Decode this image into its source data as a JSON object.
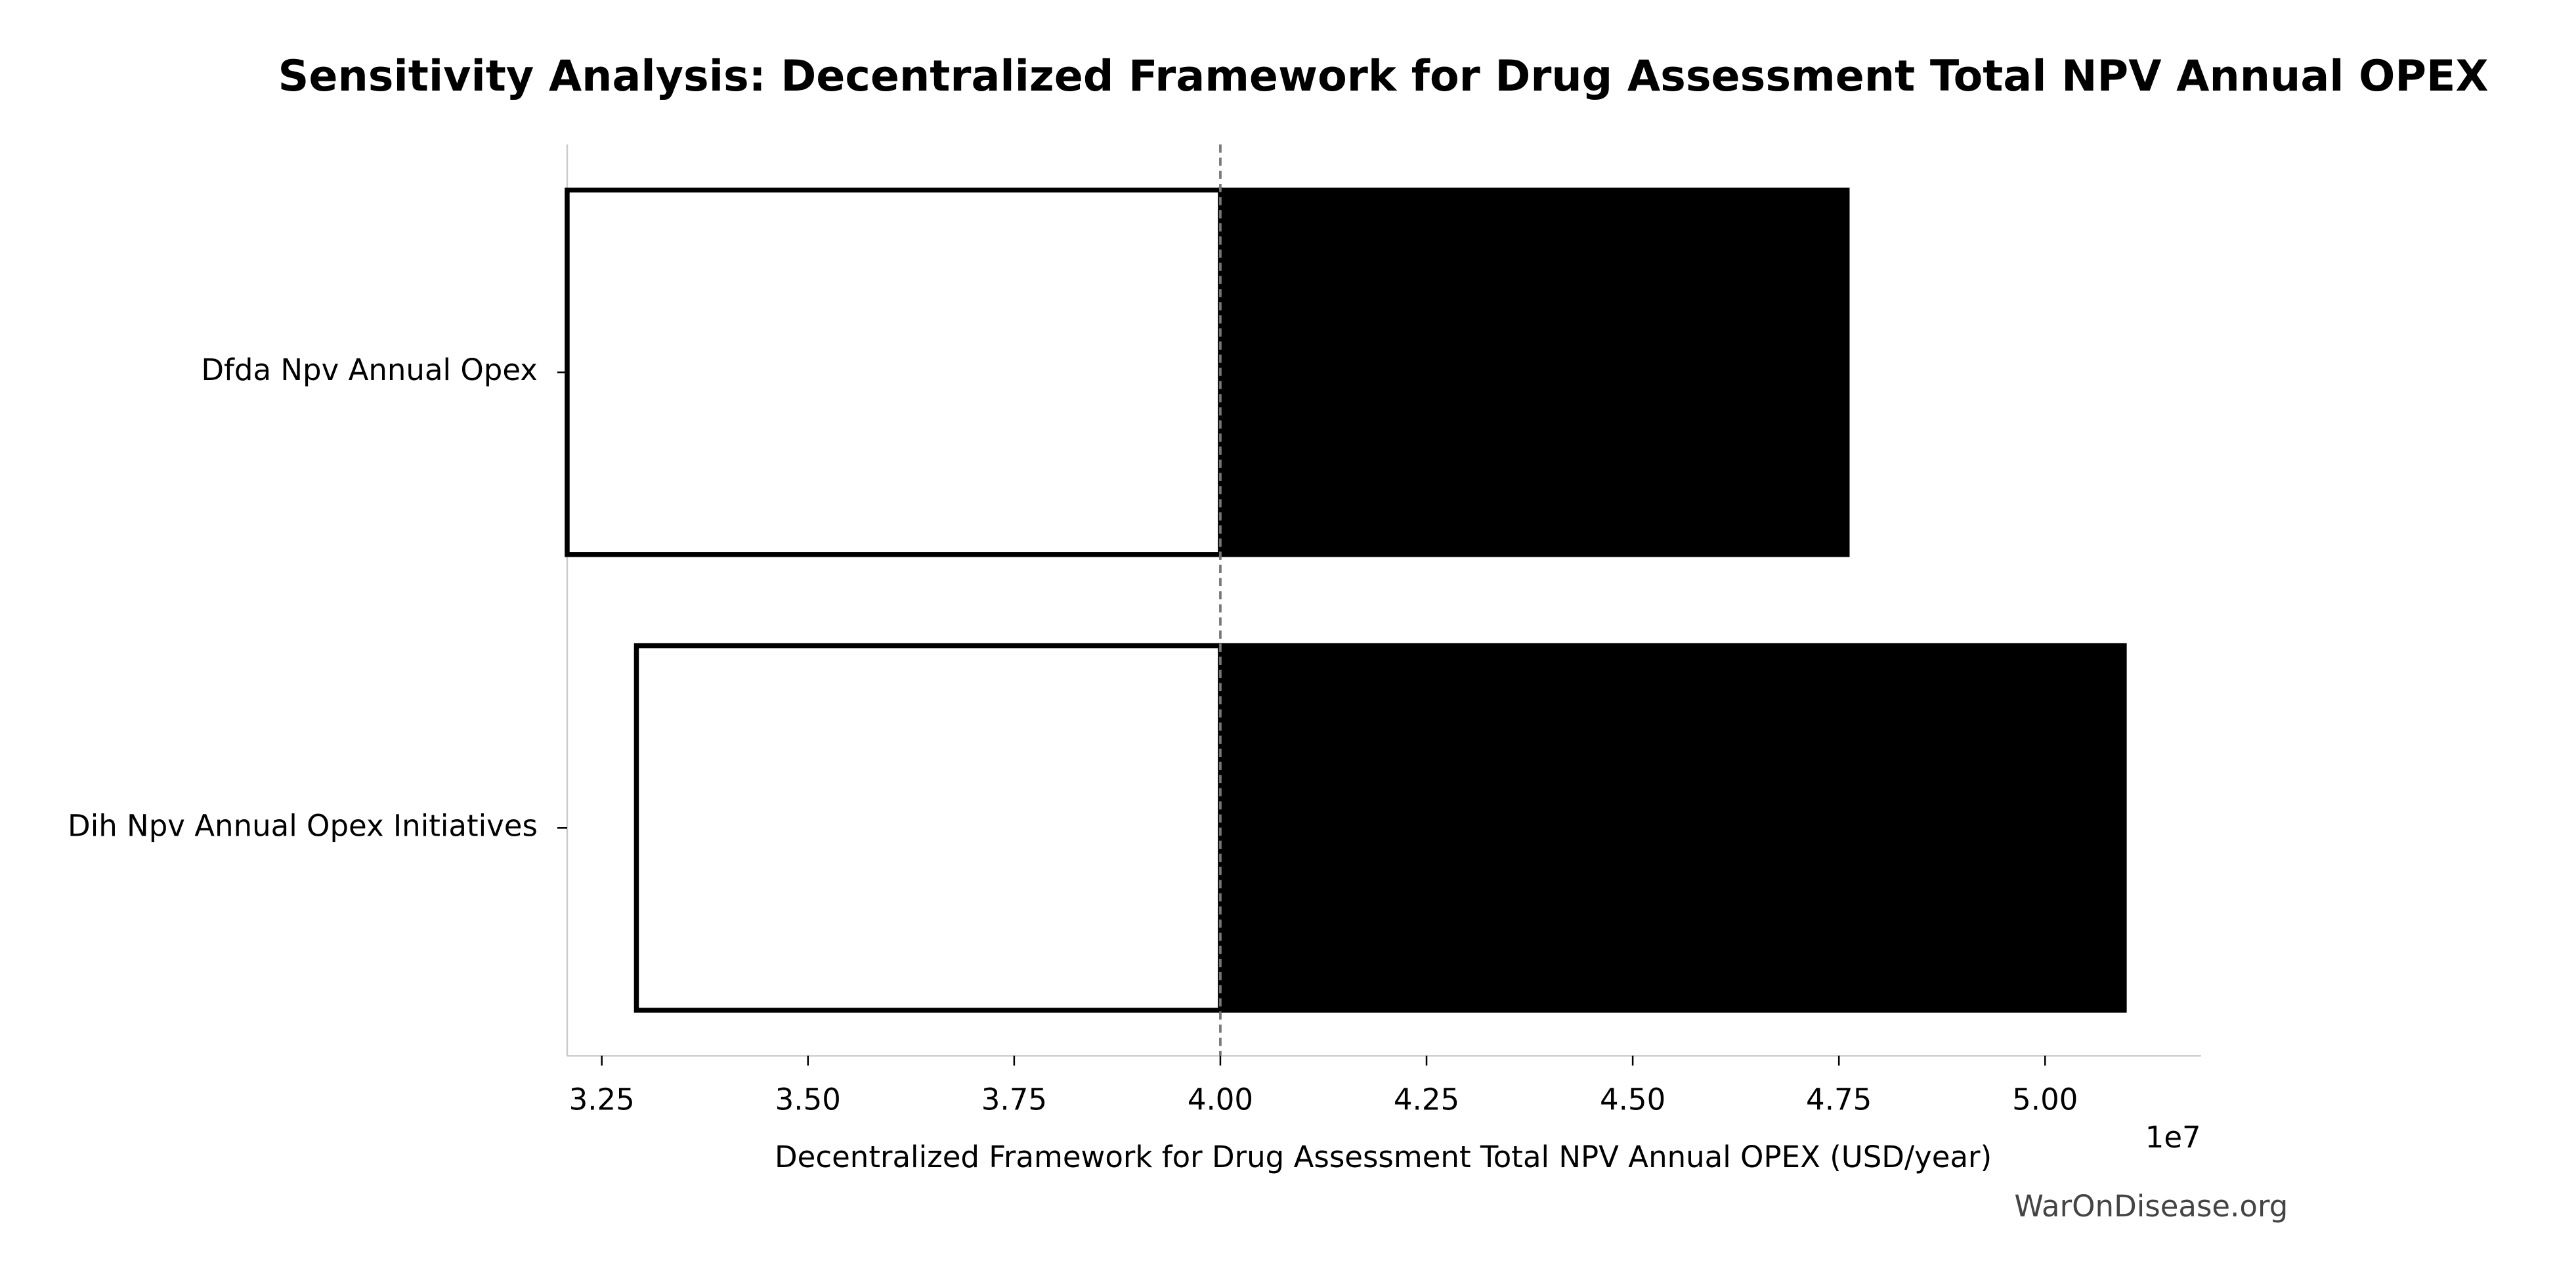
{
  "chart_data": {
    "type": "tornado",
    "title": "Sensitivity Analysis: Decentralized Framework for Drug Assessment Total NPV Annual OPEX",
    "xlabel": "Decentralized Framework for Drug Assessment Total NPV Annual OPEX (USD/year)",
    "x_offset_label": "1e7",
    "watermark": "WarOnDisease.org",
    "categories": [
      "Dfda Npv Annual Opex",
      "Dih Npv Annual Opex Initiatives"
    ],
    "baseline": 40000000,
    "low_values": [
      32080000,
      32920000
    ],
    "high_values": [
      47600000,
      50960000
    ],
    "low_color": "#ffffff",
    "high_color": "#000000",
    "edge_color": "#000000",
    "xlim": [
      32080000,
      51890000
    ],
    "xticks": [
      {
        "value": 32500000,
        "label": "3.25"
      },
      {
        "value": 35000000,
        "label": "3.50"
      },
      {
        "value": 37500000,
        "label": "3.75"
      },
      {
        "value": 40000000,
        "label": "4.00"
      },
      {
        "value": 42500000,
        "label": "4.25"
      },
      {
        "value": 45000000,
        "label": "4.50"
      },
      {
        "value": 47500000,
        "label": "4.75"
      },
      {
        "value": 50000000,
        "label": "5.00"
      }
    ]
  }
}
